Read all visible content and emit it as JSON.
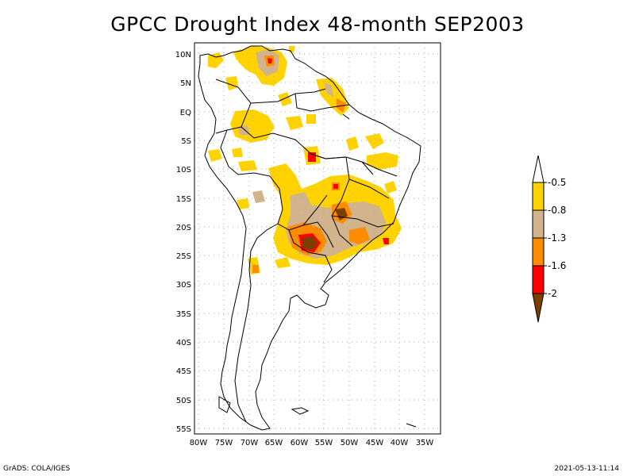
{
  "title": "GPCC Drought Index 48-month SEP2003",
  "footer_left": "GrADS: COLA/IGES",
  "footer_right": "2021-05-13-11:14",
  "lat_labels": [
    "10N",
    "5N",
    "EQ",
    "5S",
    "10S",
    "15S",
    "20S",
    "25S",
    "30S",
    "35S",
    "40S",
    "45S",
    "50S",
    "55S"
  ],
  "lat_values": [
    10,
    5,
    0,
    -5,
    -10,
    -15,
    -20,
    -25,
    -30,
    -35,
    -40,
    -45,
    -50,
    -55
  ],
  "lon_labels": [
    "80W",
    "75W",
    "70W",
    "65W",
    "60W",
    "55W",
    "50W",
    "45W",
    "40W",
    "35W"
  ],
  "lon_values": [
    -80,
    -75,
    -70,
    -65,
    -60,
    -55,
    -50,
    -45,
    -40,
    -35
  ],
  "legend": {
    "labels": [
      "-0.5",
      "-0.8",
      "-1.3",
      "-1.6",
      "-2"
    ],
    "colors": [
      "#ffffff",
      "#ffd200",
      "#d2b48c",
      "#ff8c00",
      "#ff0000",
      "#7b3f00"
    ]
  }
}
